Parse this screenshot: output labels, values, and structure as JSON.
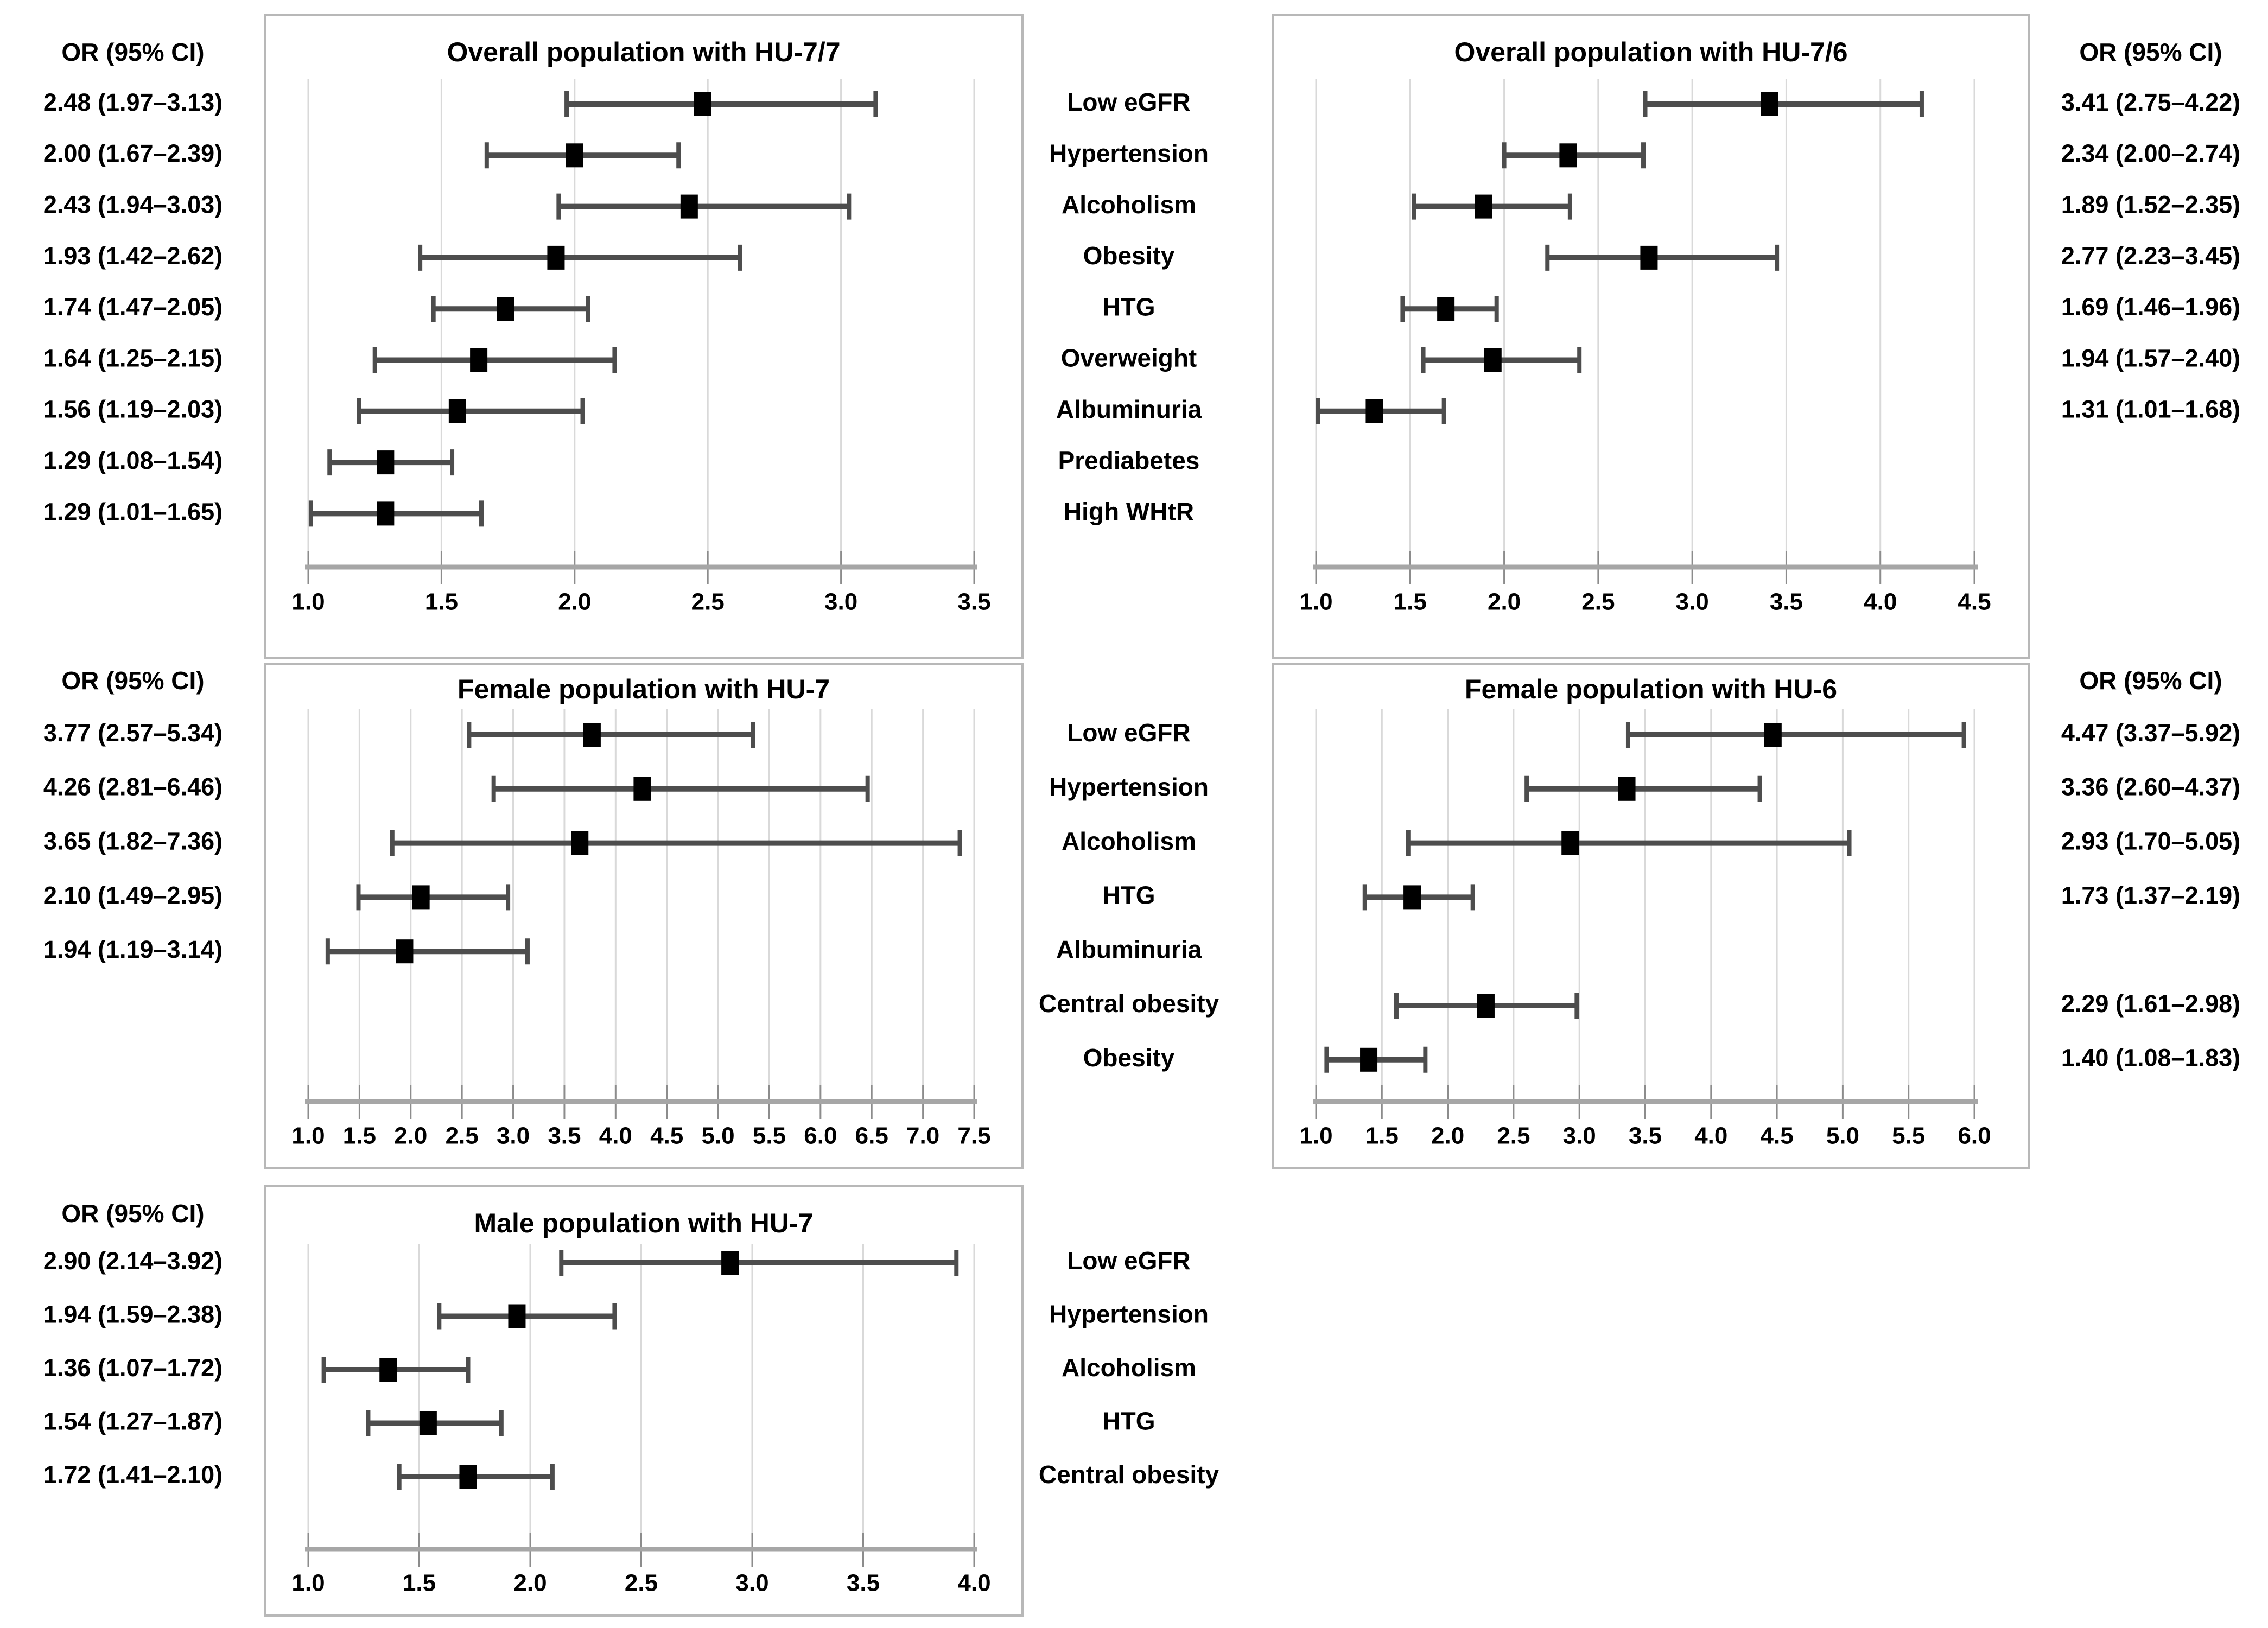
{
  "or_header": "OR (95% CI)",
  "colors": {
    "text": "#000000",
    "panel_border": "#b8b8b8",
    "gridline": "#d9d9d9",
    "axis_line": "#a6a6a6",
    "tick_mark": "#8c8c8c",
    "ci_line": "#4d4d4d",
    "marker": "#000000",
    "background": "#ffffff"
  },
  "chart_data": {
    "type": "forest",
    "bands": [
      {
        "name": "top",
        "categories": [
          "Low eGFR",
          "Hypertension",
          "Alcoholism",
          "Obesity",
          "HTG",
          "Overweight",
          "Albuminuria",
          "Prediabetes",
          "High WHtR"
        ],
        "panels": [
          {
            "side": "left",
            "title": "Overall population with HU-7/7",
            "or_column": "left",
            "xlim": [
              1.0,
              3.5
            ],
            "xticks": [
              "1.0",
              "1.5",
              "2.0",
              "2.5",
              "3.0",
              "3.5"
            ],
            "rows": [
              {
                "category": "Low eGFR",
                "or": 2.48,
                "lo": 1.97,
                "hi": 3.13,
                "label": "2.48 (1.97–3.13)"
              },
              {
                "category": "Hypertension",
                "or": 2.0,
                "lo": 1.67,
                "hi": 2.39,
                "label": "2.00 (1.67–2.39)"
              },
              {
                "category": "Alcoholism",
                "or": 2.43,
                "lo": 1.94,
                "hi": 3.03,
                "label": "2.43 (1.94–3.03)"
              },
              {
                "category": "Obesity",
                "or": 1.93,
                "lo": 1.42,
                "hi": 2.62,
                "label": "1.93 (1.42–2.62)"
              },
              {
                "category": "HTG",
                "or": 1.74,
                "lo": 1.47,
                "hi": 2.05,
                "label": "1.74 (1.47–2.05)"
              },
              {
                "category": "Overweight",
                "or": 1.64,
                "lo": 1.25,
                "hi": 2.15,
                "label": "1.64 (1.25–2.15)"
              },
              {
                "category": "Albuminuria",
                "or": 1.56,
                "lo": 1.19,
                "hi": 2.03,
                "label": "1.56 (1.19–2.03)"
              },
              {
                "category": "Prediabetes",
                "or": 1.29,
                "lo": 1.08,
                "hi": 1.54,
                "label": "1.29 (1.08–1.54)"
              },
              {
                "category": "High WHtR",
                "or": 1.29,
                "lo": 1.01,
                "hi": 1.65,
                "label": "1.29 (1.01–1.65)"
              }
            ]
          },
          {
            "side": "right",
            "title": "Overall population with HU-7/6",
            "or_column": "right",
            "xlim": [
              1.0,
              4.5
            ],
            "xticks": [
              "1.0",
              "1.5",
              "2.0",
              "2.5",
              "3.0",
              "3.5",
              "4.0",
              "4.5"
            ],
            "rows": [
              {
                "category": "Low eGFR",
                "or": 3.41,
                "lo": 2.75,
                "hi": 4.22,
                "label": "3.41 (2.75–4.22)"
              },
              {
                "category": "Hypertension",
                "or": 2.34,
                "lo": 2.0,
                "hi": 2.74,
                "label": "2.34 (2.00–2.74)"
              },
              {
                "category": "Alcoholism",
                "or": 1.89,
                "lo": 1.52,
                "hi": 2.35,
                "label": "1.89 (1.52–2.35)"
              },
              {
                "category": "Obesity",
                "or": 2.77,
                "lo": 2.23,
                "hi": 3.45,
                "label": "2.77 (2.23–3.45)"
              },
              {
                "category": "HTG",
                "or": 1.69,
                "lo": 1.46,
                "hi": 1.96,
                "label": "1.69 (1.46–1.96)"
              },
              {
                "category": "Overweight",
                "or": 1.94,
                "lo": 1.57,
                "hi": 2.4,
                "label": "1.94 (1.57–2.40)"
              },
              {
                "category": "Albuminuria",
                "or": 1.31,
                "lo": 1.01,
                "hi": 1.68,
                "label": "1.31 (1.01–1.68)"
              }
            ]
          }
        ]
      },
      {
        "name": "middle",
        "categories": [
          "Low eGFR",
          "Hypertension",
          "Alcoholism",
          "HTG",
          "Albuminuria",
          "Central obesity",
          "Obesity"
        ],
        "panels": [
          {
            "side": "left",
            "title": "Female population with HU-7",
            "or_column": "left",
            "xlim": [
              1.0,
              7.5
            ],
            "xticks": [
              "1.0",
              "1.5",
              "2.0",
              "2.5",
              "3.0",
              "3.5",
              "4.0",
              "4.5",
              "5.0",
              "5.5",
              "6.0",
              "6.5",
              "7.0",
              "7.5"
            ],
            "rows": [
              {
                "category": "Low eGFR",
                "or": 3.77,
                "lo": 2.57,
                "hi": 5.34,
                "label": "3.77 (2.57–5.34)"
              },
              {
                "category": "Hypertension",
                "or": 4.26,
                "lo": 2.81,
                "hi": 6.46,
                "label": "4.26 (2.81–6.46)"
              },
              {
                "category": "Alcoholism",
                "or": 3.65,
                "lo": 1.82,
                "hi": 7.36,
                "label": "3.65 (1.82–7.36)"
              },
              {
                "category": "HTG",
                "or": 2.1,
                "lo": 1.49,
                "hi": 2.95,
                "label": "2.10 (1.49–2.95)"
              },
              {
                "category": "Albuminuria",
                "or": 1.94,
                "lo": 1.19,
                "hi": 3.14,
                "label": "1.94 (1.19–3.14)"
              }
            ]
          },
          {
            "side": "right",
            "title": "Female population with HU-6",
            "or_column": "right",
            "xlim": [
              1.0,
              6.0
            ],
            "xticks": [
              "1.0",
              "1.5",
              "2.0",
              "2.5",
              "3.0",
              "3.5",
              "4.0",
              "4.5",
              "5.0",
              "5.5",
              "6.0"
            ],
            "rows": [
              {
                "category": "Low eGFR",
                "or": 4.47,
                "lo": 3.37,
                "hi": 5.92,
                "label": "4.47 (3.37–5.92)"
              },
              {
                "category": "Hypertension",
                "or": 3.36,
                "lo": 2.6,
                "hi": 4.37,
                "label": "3.36 (2.60–4.37)"
              },
              {
                "category": "Alcoholism",
                "or": 2.93,
                "lo": 1.7,
                "hi": 5.05,
                "label": "2.93 (1.70–5.05)"
              },
              {
                "category": "HTG",
                "or": 1.73,
                "lo": 1.37,
                "hi": 2.19,
                "label": "1.73 (1.37–2.19)"
              },
              {
                "category": "Central obesity",
                "or": 2.29,
                "lo": 1.61,
                "hi": 2.98,
                "label": "2.29 (1.61–2.98)"
              },
              {
                "category": "Obesity",
                "or": 1.4,
                "lo": 1.08,
                "hi": 1.83,
                "label": "1.40 (1.08–1.83)"
              }
            ]
          }
        ]
      },
      {
        "name": "bottom",
        "categories": [
          "Low eGFR",
          "Hypertension",
          "Alcoholism",
          "HTG",
          "Central obesity"
        ],
        "panels": [
          {
            "side": "left",
            "title": "Male population with HU-7",
            "or_column": "left",
            "xlim": [
              1.0,
              4.0
            ],
            "xticks": [
              "1.0",
              "1.5",
              "2.0",
              "2.5",
              "3.0",
              "3.5",
              "4.0"
            ],
            "rows": [
              {
                "category": "Low eGFR",
                "or": 2.9,
                "lo": 2.14,
                "hi": 3.92,
                "label": "2.90 (2.14–3.92)"
              },
              {
                "category": "Hypertension",
                "or": 1.94,
                "lo": 1.59,
                "hi": 2.38,
                "label": "1.94 (1.59–2.38)"
              },
              {
                "category": "Alcoholism",
                "or": 1.36,
                "lo": 1.07,
                "hi": 1.72,
                "label": "1.36 (1.07–1.72)"
              },
              {
                "category": "HTG",
                "or": 1.54,
                "lo": 1.27,
                "hi": 1.87,
                "label": "1.54 (1.27–1.87)"
              },
              {
                "category": "Central obesity",
                "or": 1.72,
                "lo": 1.41,
                "hi": 2.1,
                "label": "1.72 (1.41–2.10)"
              }
            ]
          }
        ]
      }
    ]
  }
}
